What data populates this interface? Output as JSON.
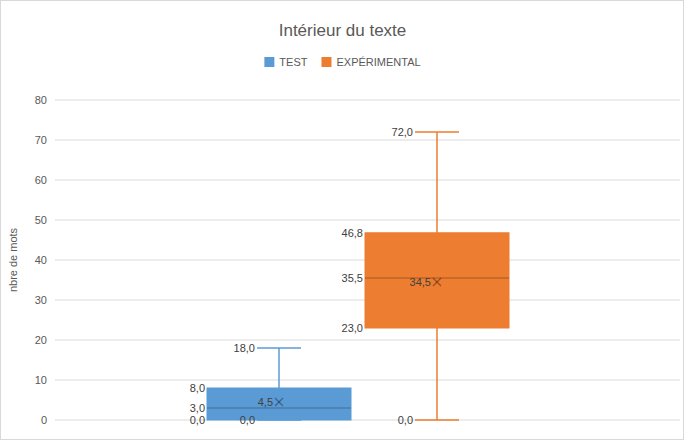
{
  "chart_data": {
    "type": "box",
    "title": "Intérieur du texte",
    "ylabel": "nbre de mots",
    "ylim": [
      0,
      80
    ],
    "yticks": [
      0,
      10,
      20,
      30,
      40,
      50,
      60,
      70,
      80
    ],
    "grid": true,
    "legend": "top",
    "data_labels": true,
    "series": [
      {
        "name": "TEST",
        "color": "#5b9bd5",
        "min": 0,
        "q1": 0,
        "median": 3,
        "q3": 8,
        "max": 18,
        "mean": 4.5,
        "value_labels": {
          "min": "0,0",
          "q1": "0,0",
          "median": "3,0",
          "q3": "8,0",
          "max": "18,0",
          "mean": "4,5"
        }
      },
      {
        "name": "EXPÉRIMENTAL",
        "color": "#ed7d31",
        "min": 0,
        "q1": 23,
        "median": 35.5,
        "q3": 46.8,
        "max": 72,
        "mean": 34.5,
        "value_labels": {
          "min": "0,0",
          "q1": "23,0",
          "median": "35,5",
          "q3": "46,8",
          "max": "72,0",
          "mean": "34,5"
        }
      }
    ]
  }
}
